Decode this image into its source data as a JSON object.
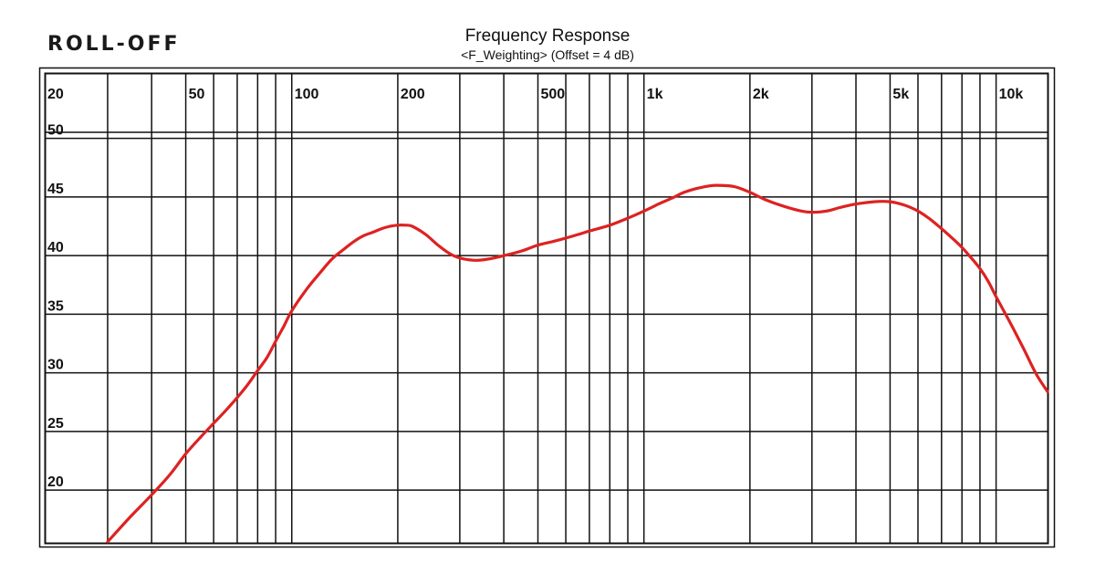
{
  "brand": "ROLL-OFF",
  "chart_data": {
    "type": "line",
    "title": "Frequency Response",
    "subtitle": "<F_Weighting> (Offset = 4 dB)",
    "x_scale": "log",
    "xlim": [
      20,
      14000
    ],
    "ylim": [
      15.5,
      55.5
    ],
    "grid": true,
    "x_tick_labels": [
      {
        "value": 20,
        "label": "20"
      },
      {
        "value": 50,
        "label": "50"
      },
      {
        "value": 100,
        "label": "100"
      },
      {
        "value": 200,
        "label": "200"
      },
      {
        "value": 500,
        "label": "500"
      },
      {
        "value": 1000,
        "label": "1k"
      },
      {
        "value": 2000,
        "label": "2k"
      },
      {
        "value": 5000,
        "label": "5k"
      },
      {
        "value": 10000,
        "label": "10k"
      }
    ],
    "x_gridlines": [
      30,
      40,
      50,
      60,
      70,
      80,
      90,
      100,
      200,
      300,
      400,
      500,
      600,
      700,
      800,
      900,
      1000,
      2000,
      3000,
      4000,
      5000,
      6000,
      7000,
      8000,
      9000,
      10000
    ],
    "y_tick_labels": [
      {
        "value": 50,
        "label": "50"
      },
      {
        "value": 45,
        "label": "45"
      },
      {
        "value": 40,
        "label": "40"
      },
      {
        "value": 35,
        "label": "35"
      },
      {
        "value": 30,
        "label": "30"
      },
      {
        "value": 25,
        "label": "25"
      },
      {
        "value": 20,
        "label": "20"
      }
    ],
    "y_gridlines": [
      50,
      45,
      40,
      35,
      30,
      25,
      20
    ],
    "line_color": "#dd2222",
    "series": [
      {
        "x": [
          30,
          35,
          40,
          45,
          50,
          55,
          60,
          65,
          70,
          75,
          80,
          85,
          90,
          95,
          100,
          110,
          120,
          130,
          140,
          150,
          160,
          170,
          180,
          190,
          200,
          210,
          220,
          240,
          260,
          280,
          300,
          330,
          360,
          400,
          450,
          500,
          550,
          600,
          650,
          700,
          800,
          900,
          1000,
          1100,
          1200,
          1300,
          1400,
          1500,
          1600,
          1800,
          2000,
          2200,
          2500,
          2800,
          3000,
          3300,
          3600,
          4000,
          4500,
          5000,
          5500,
          6000,
          6500,
          7000,
          7500,
          8000,
          8500,
          9000,
          9500,
          10000,
          11000,
          12000,
          13000,
          14000
        ],
        "y": [
          15.6,
          17.8,
          19.6,
          21.3,
          23.1,
          24.5,
          25.7,
          26.8,
          27.9,
          29.0,
          30.2,
          31.3,
          32.7,
          34.0,
          35.3,
          37.1,
          38.5,
          39.7,
          40.5,
          41.2,
          41.7,
          42.0,
          42.3,
          42.5,
          42.6,
          42.6,
          42.5,
          41.8,
          40.9,
          40.2,
          39.8,
          39.6,
          39.7,
          40.0,
          40.4,
          40.9,
          41.2,
          41.5,
          41.8,
          42.1,
          42.6,
          43.2,
          43.8,
          44.4,
          44.9,
          45.4,
          45.7,
          45.9,
          46.0,
          45.9,
          45.4,
          44.8,
          44.2,
          43.8,
          43.7,
          43.8,
          44.1,
          44.4,
          44.6,
          44.6,
          44.3,
          43.8,
          43.1,
          42.3,
          41.5,
          40.7,
          39.8,
          38.9,
          37.8,
          36.5,
          34.2,
          32.0,
          29.9,
          28.4
        ]
      }
    ]
  }
}
